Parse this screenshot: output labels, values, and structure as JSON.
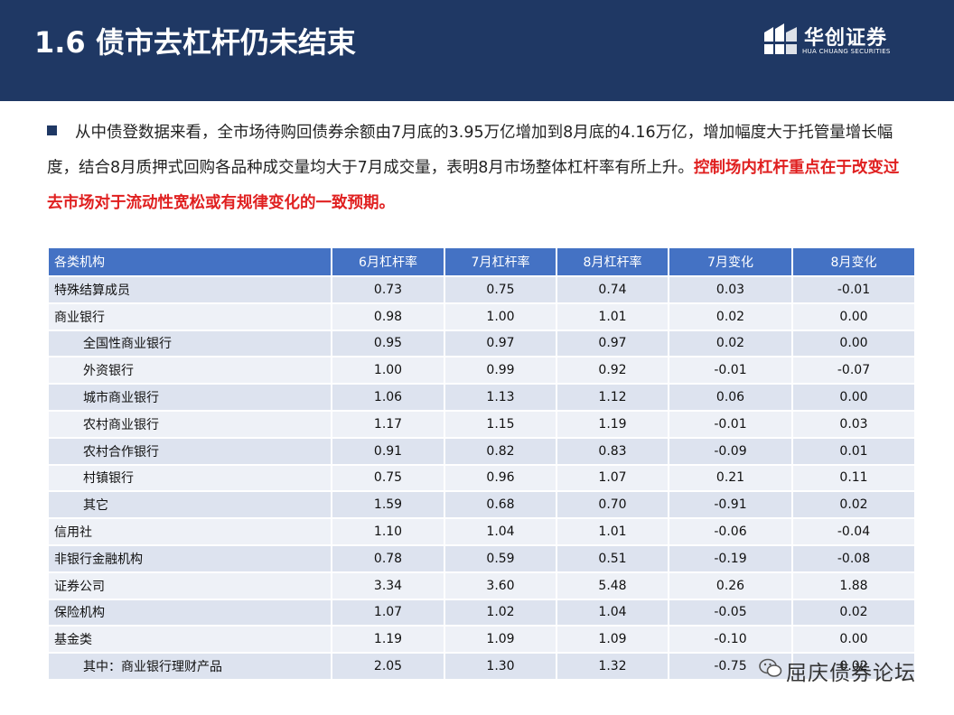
{
  "header": {
    "title": "1.6 债市去杠杆仍未结束",
    "logo_cn": "华创证券",
    "logo_en": "HUA CHUANG SECURITIES",
    "bg_color": "#1f3864"
  },
  "paragraph": {
    "normal": "从中债登数据来看，全市场待购回债券余额由7月底的3.95万亿增加到8月底的4.16万亿，增加幅度大于托管量增长幅度，结合8月质押式回购各品种成交量均大于7月成交量，表明8月市场整体杠杆率有所上升。",
    "highlight": "控制场内杠杆重点在于改变过去市场对于流动性宽松或有规律变化的一致预期。",
    "highlight_color": "#e02020"
  },
  "table": {
    "headers": [
      "各类机构",
      "6月杠杆率",
      "7月杠杆率",
      "8月杠杆率",
      "7月变化",
      "8月变化"
    ],
    "rows": [
      {
        "name": "特殊结算成员",
        "v": [
          "0.73",
          "0.75",
          "0.74",
          "0.03",
          "-0.01"
        ]
      },
      {
        "name": "商业银行",
        "v": [
          "0.98",
          "1.00",
          "1.01",
          "0.02",
          "0.00"
        ]
      },
      {
        "name": "全国性商业银行",
        "v": [
          "0.95",
          "0.97",
          "0.97",
          "0.02",
          "0.00"
        ]
      },
      {
        "name": "外资银行",
        "v": [
          "1.00",
          "0.99",
          "0.92",
          "-0.01",
          "-0.07"
        ]
      },
      {
        "name": "城市商业银行",
        "v": [
          "1.06",
          "1.13",
          "1.12",
          "0.06",
          "0.00"
        ]
      },
      {
        "name": "农村商业银行",
        "v": [
          "1.17",
          "1.15",
          "1.19",
          "-0.01",
          "0.03"
        ]
      },
      {
        "name": "农村合作银行",
        "v": [
          "0.91",
          "0.82",
          "0.83",
          "-0.09",
          "0.01"
        ]
      },
      {
        "name": "村镇银行",
        "v": [
          "0.75",
          "0.96",
          "1.07",
          "0.21",
          "0.11"
        ]
      },
      {
        "name": "其它",
        "v": [
          "1.59",
          "0.68",
          "0.70",
          "-0.91",
          "0.02"
        ]
      },
      {
        "name": "信用社",
        "v": [
          "1.10",
          "1.04",
          "1.01",
          "-0.06",
          "-0.04"
        ]
      },
      {
        "name": "非银行金融机构",
        "v": [
          "0.78",
          "0.59",
          "0.51",
          "-0.19",
          "-0.08"
        ]
      },
      {
        "name": "证券公司",
        "v": [
          "3.34",
          "3.60",
          "5.48",
          "0.26",
          "1.88"
        ]
      },
      {
        "name": "保险机构",
        "v": [
          "1.07",
          "1.02",
          "1.04",
          "-0.05",
          "0.02"
        ]
      },
      {
        "name": "基金类",
        "v": [
          "1.19",
          "1.09",
          "1.09",
          "-0.10",
          "0.00"
        ]
      },
      {
        "name": "其中：商业银行理财产品",
        "v": [
          "2.05",
          "1.30",
          "1.32",
          "-0.75",
          "0.02"
        ]
      }
    ],
    "header_color": "#4472c4"
  },
  "watermark": {
    "text": "屈庆债券论坛",
    "icon": "wechat-icon"
  }
}
